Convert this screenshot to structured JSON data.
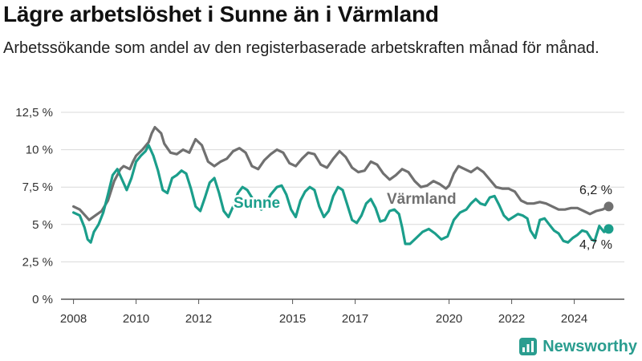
{
  "header": {
    "title": "Lägre arbetslöshet i Sunne än i Värmland",
    "subtitle": "Arbetssökande som andel av den registerbaserade arbetskraften månad för månad."
  },
  "brand": {
    "name": "Newsworthy",
    "icon": "bar-chart-logo-icon",
    "color": "#2a9d8f"
  },
  "chart_data": {
    "type": "line",
    "title": "Lägre arbetslöshet i Sunne än i Värmland",
    "subtitle": "Arbetssökande som andel av den registerbaserade arbetskraften månad för månad.",
    "xlim": [
      2007.6,
      2025.6
    ],
    "ylim": [
      0,
      12.5
    ],
    "y_ticks": [
      {
        "value": 0,
        "label": "0 %"
      },
      {
        "value": 2.5,
        "label": "2,5 %"
      },
      {
        "value": 5,
        "label": "5 %"
      },
      {
        "value": 7.5,
        "label": "7,5 %"
      },
      {
        "value": 10,
        "label": "10 %"
      },
      {
        "value": 12.5,
        "label": "12,5 %"
      }
    ],
    "x_ticks": [
      {
        "value": 2008,
        "label": "2008"
      },
      {
        "value": 2010,
        "label": "2010"
      },
      {
        "value": 2012,
        "label": "2012"
      },
      {
        "value": 2015,
        "label": "2015"
      },
      {
        "value": 2017,
        "label": "2017"
      },
      {
        "value": 2020,
        "label": "2020"
      },
      {
        "value": 2022,
        "label": "2022"
      },
      {
        "value": 2024,
        "label": "2024"
      }
    ],
    "grid": true,
    "series": [
      {
        "name": "Värmland",
        "color": "#707070",
        "end_label": "6,2 %",
        "points": [
          [
            2008.0,
            6.2
          ],
          [
            2008.2,
            6.0
          ],
          [
            2008.5,
            5.3
          ],
          [
            2008.7,
            5.6
          ],
          [
            2008.9,
            5.9
          ],
          [
            2009.1,
            6.6
          ],
          [
            2009.3,
            7.9
          ],
          [
            2009.5,
            8.7
          ],
          [
            2009.6,
            8.9
          ],
          [
            2009.8,
            8.7
          ],
          [
            2009.9,
            9.2
          ],
          [
            2010.0,
            9.6
          ],
          [
            2010.2,
            10.0
          ],
          [
            2010.4,
            10.5
          ],
          [
            2010.5,
            11.1
          ],
          [
            2010.6,
            11.5
          ],
          [
            2010.8,
            11.1
          ],
          [
            2010.9,
            10.4
          ],
          [
            2011.1,
            9.8
          ],
          [
            2011.3,
            9.7
          ],
          [
            2011.5,
            10.0
          ],
          [
            2011.7,
            9.8
          ],
          [
            2011.9,
            10.7
          ],
          [
            2012.1,
            10.3
          ],
          [
            2012.3,
            9.2
          ],
          [
            2012.5,
            8.9
          ],
          [
            2012.7,
            9.2
          ],
          [
            2012.9,
            9.4
          ],
          [
            2013.1,
            9.9
          ],
          [
            2013.3,
            10.1
          ],
          [
            2013.5,
            9.8
          ],
          [
            2013.7,
            8.9
          ],
          [
            2013.9,
            8.7
          ],
          [
            2014.1,
            9.3
          ],
          [
            2014.3,
            9.7
          ],
          [
            2014.5,
            10.0
          ],
          [
            2014.7,
            9.8
          ],
          [
            2014.9,
            9.1
          ],
          [
            2015.1,
            8.9
          ],
          [
            2015.3,
            9.4
          ],
          [
            2015.5,
            9.8
          ],
          [
            2015.7,
            9.7
          ],
          [
            2015.9,
            9.0
          ],
          [
            2016.1,
            8.8
          ],
          [
            2016.3,
            9.4
          ],
          [
            2016.5,
            9.9
          ],
          [
            2016.7,
            9.5
          ],
          [
            2016.9,
            8.8
          ],
          [
            2017.1,
            8.5
          ],
          [
            2017.3,
            8.6
          ],
          [
            2017.5,
            9.2
          ],
          [
            2017.7,
            9.0
          ],
          [
            2017.9,
            8.4
          ],
          [
            2018.1,
            8.0
          ],
          [
            2018.3,
            8.3
          ],
          [
            2018.5,
            8.7
          ],
          [
            2018.7,
            8.5
          ],
          [
            2018.9,
            7.9
          ],
          [
            2019.1,
            7.5
          ],
          [
            2019.3,
            7.6
          ],
          [
            2019.5,
            7.9
          ],
          [
            2019.7,
            7.7
          ],
          [
            2019.9,
            7.4
          ],
          [
            2020.0,
            7.6
          ],
          [
            2020.15,
            8.4
          ],
          [
            2020.3,
            8.9
          ],
          [
            2020.5,
            8.7
          ],
          [
            2020.7,
            8.5
          ],
          [
            2020.9,
            8.8
          ],
          [
            2021.1,
            8.5
          ],
          [
            2021.3,
            8.0
          ],
          [
            2021.5,
            7.5
          ],
          [
            2021.7,
            7.4
          ],
          [
            2021.9,
            7.4
          ],
          [
            2022.1,
            7.2
          ],
          [
            2022.3,
            6.6
          ],
          [
            2022.5,
            6.4
          ],
          [
            2022.7,
            6.4
          ],
          [
            2022.9,
            6.5
          ],
          [
            2023.1,
            6.4
          ],
          [
            2023.3,
            6.2
          ],
          [
            2023.5,
            6.0
          ],
          [
            2023.7,
            6.0
          ],
          [
            2023.9,
            6.1
          ],
          [
            2024.1,
            6.1
          ],
          [
            2024.3,
            5.9
          ],
          [
            2024.5,
            5.7
          ],
          [
            2024.7,
            5.9
          ],
          [
            2024.9,
            6.0
          ],
          [
            2025.1,
            6.2
          ]
        ]
      },
      {
        "name": "Sunne",
        "color": "#1b9e8b",
        "end_label": "4,7 %",
        "points": [
          [
            2008.0,
            5.8
          ],
          [
            2008.2,
            5.6
          ],
          [
            2008.35,
            4.8
          ],
          [
            2008.45,
            4.0
          ],
          [
            2008.55,
            3.8
          ],
          [
            2008.65,
            4.5
          ],
          [
            2008.8,
            5.0
          ],
          [
            2008.95,
            5.8
          ],
          [
            2009.1,
            7.0
          ],
          [
            2009.25,
            8.3
          ],
          [
            2009.4,
            8.7
          ],
          [
            2009.55,
            8.0
          ],
          [
            2009.7,
            7.3
          ],
          [
            2009.85,
            8.1
          ],
          [
            2010.0,
            9.2
          ],
          [
            2010.15,
            9.6
          ],
          [
            2010.3,
            9.9
          ],
          [
            2010.4,
            10.3
          ],
          [
            2010.55,
            9.6
          ],
          [
            2010.7,
            8.6
          ],
          [
            2010.85,
            7.3
          ],
          [
            2011.0,
            7.1
          ],
          [
            2011.15,
            8.1
          ],
          [
            2011.3,
            8.3
          ],
          [
            2011.45,
            8.6
          ],
          [
            2011.6,
            8.4
          ],
          [
            2011.75,
            7.4
          ],
          [
            2011.9,
            6.2
          ],
          [
            2012.05,
            5.9
          ],
          [
            2012.2,
            6.8
          ],
          [
            2012.35,
            7.8
          ],
          [
            2012.5,
            8.1
          ],
          [
            2012.65,
            7.1
          ],
          [
            2012.8,
            5.9
          ],
          [
            2012.95,
            5.5
          ],
          [
            2013.1,
            6.2
          ],
          [
            2013.25,
            7.1
          ],
          [
            2013.4,
            7.5
          ],
          [
            2013.55,
            7.3
          ],
          [
            2013.7,
            6.8
          ],
          [
            2013.85,
            6.3
          ],
          [
            2014.0,
            6.0
          ],
          [
            2014.1,
            6.2
          ],
          [
            2014.3,
            7.0
          ],
          [
            2014.5,
            7.5
          ],
          [
            2014.65,
            7.6
          ],
          [
            2014.8,
            7.0
          ],
          [
            2014.95,
            6.0
          ],
          [
            2015.1,
            5.5
          ],
          [
            2015.25,
            6.6
          ],
          [
            2015.4,
            7.2
          ],
          [
            2015.55,
            7.5
          ],
          [
            2015.7,
            7.3
          ],
          [
            2015.85,
            6.2
          ],
          [
            2016.0,
            5.5
          ],
          [
            2016.15,
            5.9
          ],
          [
            2016.3,
            6.9
          ],
          [
            2016.45,
            7.5
          ],
          [
            2016.6,
            7.3
          ],
          [
            2016.75,
            6.3
          ],
          [
            2016.9,
            5.3
          ],
          [
            2017.05,
            5.1
          ],
          [
            2017.2,
            5.6
          ],
          [
            2017.35,
            6.4
          ],
          [
            2017.5,
            6.7
          ],
          [
            2017.65,
            6.1
          ],
          [
            2017.8,
            5.2
          ],
          [
            2017.95,
            5.3
          ],
          [
            2018.1,
            5.9
          ],
          [
            2018.25,
            6.0
          ],
          [
            2018.4,
            5.7
          ],
          [
            2018.5,
            4.8
          ],
          [
            2018.6,
            3.7
          ],
          [
            2018.75,
            3.7
          ],
          [
            2018.95,
            4.1
          ],
          [
            2019.15,
            4.5
          ],
          [
            2019.35,
            4.7
          ],
          [
            2019.55,
            4.4
          ],
          [
            2019.75,
            4.0
          ],
          [
            2019.95,
            4.2
          ],
          [
            2020.15,
            5.3
          ],
          [
            2020.35,
            5.8
          ],
          [
            2020.55,
            6.0
          ],
          [
            2020.7,
            6.4
          ],
          [
            2020.85,
            6.7
          ],
          [
            2021.0,
            6.4
          ],
          [
            2021.15,
            6.3
          ],
          [
            2021.3,
            6.8
          ],
          [
            2021.45,
            6.9
          ],
          [
            2021.6,
            6.3
          ],
          [
            2021.75,
            5.6
          ],
          [
            2021.9,
            5.3
          ],
          [
            2022.05,
            5.5
          ],
          [
            2022.2,
            5.7
          ],
          [
            2022.35,
            5.6
          ],
          [
            2022.5,
            5.4
          ],
          [
            2022.6,
            4.6
          ],
          [
            2022.75,
            4.1
          ],
          [
            2022.9,
            5.3
          ],
          [
            2023.05,
            5.4
          ],
          [
            2023.2,
            5.0
          ],
          [
            2023.35,
            4.6
          ],
          [
            2023.5,
            4.4
          ],
          [
            2023.65,
            3.9
          ],
          [
            2023.8,
            3.8
          ],
          [
            2023.95,
            4.1
          ],
          [
            2024.1,
            4.3
          ],
          [
            2024.25,
            4.6
          ],
          [
            2024.4,
            4.5
          ],
          [
            2024.55,
            4.0
          ],
          [
            2024.65,
            3.9
          ],
          [
            2024.8,
            4.9
          ],
          [
            2024.95,
            4.5
          ],
          [
            2025.1,
            4.7
          ]
        ]
      }
    ]
  }
}
